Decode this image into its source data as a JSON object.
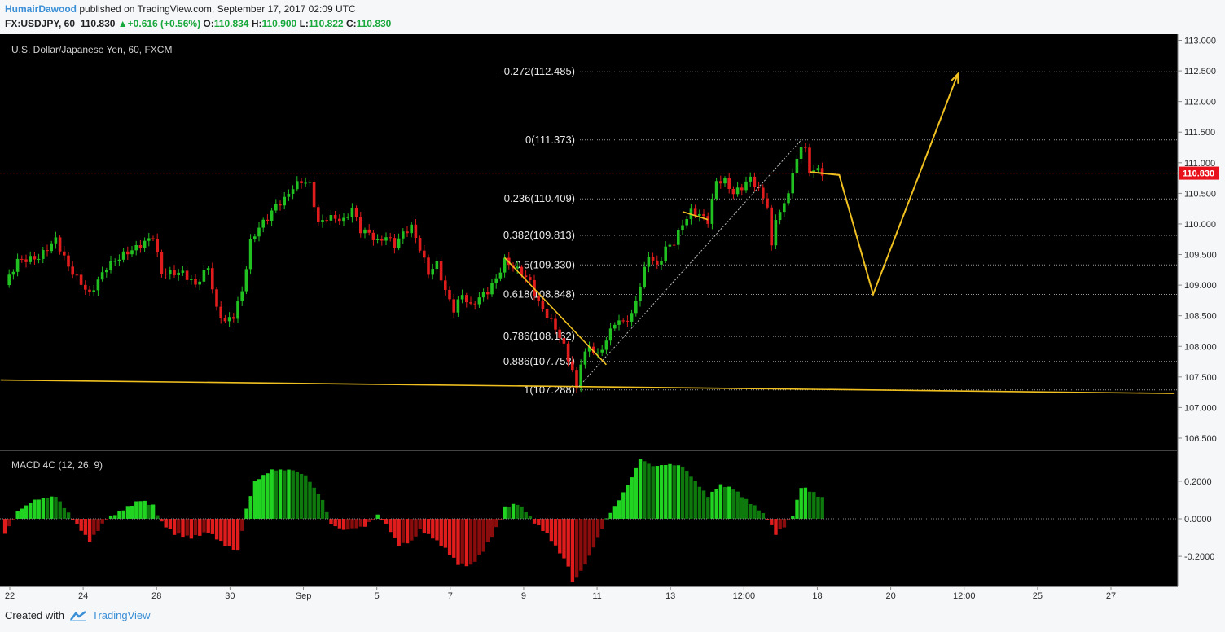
{
  "header": {
    "user": "HumairDawood",
    "published": "published on TradingView.com, September 17, 2017 02:09 UTC",
    "symbol": "FX:USDJPY, 60",
    "last": "110.830",
    "change": "+0.616 (+0.56%)",
    "o_label": "O:",
    "o": "110.834",
    "h_label": "H:",
    "h": "110.900",
    "l_label": "L:",
    "l": "110.822",
    "c_label": "C:",
    "c": "110.830"
  },
  "footer": {
    "created_with": "Created with",
    "brand": "TradingView"
  },
  "chart_data": [
    {
      "type": "candlestick",
      "title": "U.S. Dollar/Japanese Yen, 60, FXCM",
      "ylim": [
        106.3,
        113.1
      ],
      "yticks": [
        "113.000",
        "112.500",
        "112.000",
        "111.500",
        "111.000",
        "110.500",
        "110.000",
        "109.500",
        "109.000",
        "108.500",
        "108.000",
        "107.500",
        "107.000",
        "106.500"
      ],
      "last_price": "110.830",
      "xticks": [
        "22",
        "24",
        "28",
        "30",
        "Sep",
        "5",
        "7",
        "9",
        "11",
        "13",
        "12:00",
        "18",
        "20",
        "12:00",
        "25",
        "27"
      ],
      "price_path": [
        [
          0,
          109.0
        ],
        [
          3,
          109.4
        ],
        [
          8,
          109.45
        ],
        [
          12,
          109.75
        ],
        [
          15,
          109.3
        ],
        [
          20,
          108.85
        ],
        [
          24,
          109.3
        ],
        [
          28,
          109.5
        ],
        [
          32,
          109.65
        ],
        [
          35,
          109.8
        ],
        [
          37,
          109.2
        ],
        [
          42,
          109.2
        ],
        [
          45,
          109.0
        ],
        [
          48,
          109.3
        ],
        [
          50,
          108.6
        ],
        [
          52,
          108.4
        ],
        [
          54,
          108.5
        ],
        [
          56,
          108.9
        ],
        [
          58,
          109.7
        ],
        [
          60,
          109.95
        ],
        [
          62,
          110.1
        ],
        [
          64,
          110.3
        ],
        [
          66,
          110.4
        ],
        [
          68,
          110.6
        ],
        [
          70,
          110.7
        ],
        [
          72,
          110.65
        ],
        [
          74,
          110.0
        ],
        [
          76,
          110.1
        ],
        [
          78,
          110.1
        ],
        [
          80,
          110.05
        ],
        [
          82,
          110.25
        ],
        [
          84,
          109.9
        ],
        [
          86,
          109.85
        ],
        [
          88,
          109.7
        ],
        [
          90,
          109.8
        ],
        [
          92,
          109.65
        ],
        [
          94,
          109.85
        ],
        [
          96,
          109.95
        ],
        [
          98,
          109.6
        ],
        [
          100,
          109.2
        ],
        [
          102,
          109.35
        ],
        [
          104,
          108.9
        ],
        [
          106,
          108.6
        ],
        [
          108,
          108.85
        ],
        [
          110,
          108.65
        ],
        [
          112,
          108.8
        ],
        [
          114,
          108.9
        ],
        [
          116,
          109.1
        ],
        [
          118,
          109.4
        ],
        [
          120,
          109.3
        ],
        [
          122,
          109.2
        ],
        [
          124,
          109.05
        ],
        [
          126,
          108.7
        ],
        [
          128,
          108.5
        ],
        [
          130,
          108.3
        ],
        [
          132,
          108.0
        ],
        [
          134,
          107.6
        ],
        [
          135,
          107.3
        ],
        [
          136,
          107.75
        ],
        [
          138,
          108.0
        ],
        [
          140,
          107.85
        ],
        [
          142,
          108.1
        ],
        [
          144,
          108.4
        ],
        [
          146,
          108.4
        ],
        [
          148,
          108.5
        ],
        [
          150,
          109.0
        ],
        [
          152,
          109.5
        ],
        [
          154,
          109.3
        ],
        [
          156,
          109.6
        ],
        [
          158,
          109.7
        ],
        [
          160,
          110.0
        ],
        [
          162,
          110.2
        ],
        [
          164,
          110.15
        ],
        [
          166,
          110.05
        ],
        [
          168,
          110.7
        ],
        [
          170,
          110.7
        ],
        [
          172,
          110.5
        ],
        [
          174,
          110.6
        ],
        [
          176,
          110.75
        ],
        [
          178,
          110.55
        ],
        [
          180,
          110.3
        ],
        [
          181,
          109.6
        ],
        [
          182,
          110.1
        ],
        [
          184,
          110.3
        ],
        [
          186,
          110.8
        ],
        [
          188,
          111.3
        ],
        [
          189,
          111.2
        ],
        [
          190,
          110.85
        ],
        [
          191,
          110.9
        ],
        [
          193,
          110.83
        ]
      ],
      "fib_levels": [
        {
          "label": "-0.272(112.485)",
          "price": 112.485
        },
        {
          "label": "0(111.373)",
          "price": 111.373
        },
        {
          "label": "0.236(110.409)",
          "price": 110.409
        },
        {
          "label": "0.382(109.813)",
          "price": 109.813
        },
        {
          "label": "0.5(109.330)",
          "price": 109.33
        },
        {
          "label": "0.618(108.848)",
          "price": 108.848
        },
        {
          "label": "0.786(108.162)",
          "price": 108.162
        },
        {
          "label": "0.886(107.753)",
          "price": 107.753
        },
        {
          "label": "1(107.288)",
          "price": 107.288
        }
      ],
      "support_line": {
        "from": [
          -1,
          107.45
        ],
        "to": [
          276,
          107.23
        ]
      },
      "projection": [
        [
          190,
          110.85
        ],
        [
          197,
          110.8
        ],
        [
          205,
          108.85
        ],
        [
          225,
          112.45
        ]
      ],
      "colors": {
        "up": "#22c122",
        "down": "#e01c1c",
        "fib": "#9a9a9a",
        "trend": "#f0c020",
        "last_price": "#e8101a",
        "bg": "#000000",
        "axis_text": "#2a2a2a"
      }
    },
    {
      "type": "bar",
      "title": "MACD 4C (12, 26, 9)",
      "ylim": [
        -0.36,
        0.36
      ],
      "yticks": [
        "0.2000",
        "0.0000",
        "-0.2000"
      ],
      "anchors": [
        [
          0,
          -0.08
        ],
        [
          3,
          0.04
        ],
        [
          7,
          0.1
        ],
        [
          12,
          0.12
        ],
        [
          16,
          0.0
        ],
        [
          20,
          -0.12
        ],
        [
          24,
          0.0
        ],
        [
          28,
          0.05
        ],
        [
          32,
          0.1
        ],
        [
          35,
          0.07
        ],
        [
          37,
          -0.02
        ],
        [
          40,
          -0.08
        ],
        [
          44,
          -0.1
        ],
        [
          48,
          -0.07
        ],
        [
          52,
          -0.14
        ],
        [
          55,
          -0.17
        ],
        [
          57,
          0.05
        ],
        [
          59,
          0.2
        ],
        [
          63,
          0.26
        ],
        [
          68,
          0.26
        ],
        [
          71,
          0.23
        ],
        [
          75,
          0.1
        ],
        [
          77,
          -0.03
        ],
        [
          80,
          -0.06
        ],
        [
          85,
          -0.04
        ],
        [
          88,
          0.02
        ],
        [
          90,
          -0.03
        ],
        [
          93,
          -0.14
        ],
        [
          96,
          -0.12
        ],
        [
          98,
          -0.06
        ],
        [
          101,
          -0.1
        ],
        [
          104,
          -0.16
        ],
        [
          107,
          -0.24
        ],
        [
          110,
          -0.25
        ],
        [
          113,
          -0.17
        ],
        [
          116,
          -0.05
        ],
        [
          118,
          0.06
        ],
        [
          121,
          0.08
        ],
        [
          123,
          0.04
        ],
        [
          125,
          -0.02
        ],
        [
          128,
          -0.08
        ],
        [
          131,
          -0.18
        ],
        [
          133,
          -0.25
        ],
        [
          134,
          -0.34
        ],
        [
          136,
          -0.28
        ],
        [
          138,
          -0.2
        ],
        [
          140,
          -0.1
        ],
        [
          142,
          0.0
        ],
        [
          145,
          0.1
        ],
        [
          148,
          0.22
        ],
        [
          150,
          0.32
        ],
        [
          153,
          0.28
        ],
        [
          157,
          0.29
        ],
        [
          160,
          0.28
        ],
        [
          163,
          0.2
        ],
        [
          166,
          0.12
        ],
        [
          169,
          0.18
        ],
        [
          172,
          0.16
        ],
        [
          175,
          0.1
        ],
        [
          178,
          0.05
        ],
        [
          180,
          0.0
        ],
        [
          182,
          -0.08
        ],
        [
          184,
          -0.04
        ],
        [
          186,
          0.02
        ],
        [
          188,
          0.17
        ],
        [
          190,
          0.15
        ],
        [
          193,
          0.11
        ]
      ],
      "colors": {
        "pos_up": "#22d422",
        "pos_down": "#0e7a0e",
        "neg_down": "#e01c1c",
        "neg_up": "#8b0c0c"
      }
    }
  ]
}
